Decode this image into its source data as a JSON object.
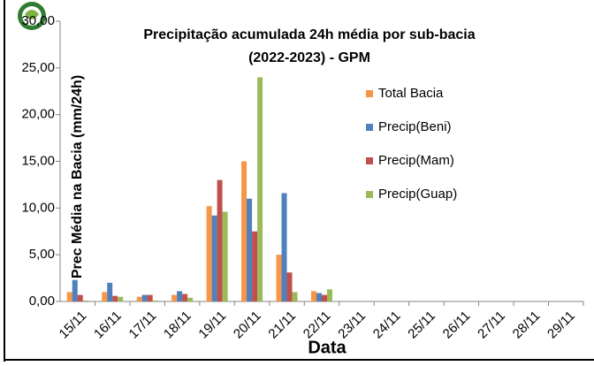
{
  "chart_data": {
    "type": "bar",
    "title": [
      "Precipitação acumulada 24h média por sub-bacia",
      "(2022-2023) - GPM"
    ],
    "ylabel": "Prec  Média na Bacia (mm/24h)",
    "xlabel": "Data",
    "categories": [
      "15/11",
      "16/11",
      "17/11",
      "18/11",
      "19/11",
      "20/11",
      "21/11",
      "22/11",
      "23/11",
      "24/11",
      "25/11",
      "26/11",
      "27/11",
      "28/11",
      "29/11"
    ],
    "series": [
      {
        "name": "Total Bacia",
        "color": "#f79646",
        "values": [
          1.0,
          1.0,
          0.5,
          0.7,
          10.2,
          15.0,
          5.0,
          1.1,
          null,
          null,
          null,
          null,
          null,
          null,
          null
        ]
      },
      {
        "name": "Precip(Beni)",
        "color": "#4f81bd",
        "values": [
          2.3,
          2.0,
          0.7,
          1.1,
          9.2,
          11.0,
          11.6,
          0.9,
          null,
          null,
          null,
          null,
          null,
          null,
          null
        ]
      },
      {
        "name": "Precip(Mam)",
        "color": "#c0504d",
        "values": [
          0.7,
          0.6,
          0.7,
          0.8,
          13.0,
          7.5,
          3.1,
          0.7,
          null,
          null,
          null,
          null,
          null,
          null,
          null
        ]
      },
      {
        "name": "Precip(Guap)",
        "color": "#9bbb59",
        "values": [
          0.1,
          0.5,
          0.1,
          0.4,
          9.6,
          24.0,
          1.0,
          1.3,
          null,
          null,
          null,
          null,
          null,
          null,
          null
        ]
      }
    ],
    "ylim": [
      0,
      30
    ],
    "yticks": [
      {
        "value": 0,
        "label": "0,00"
      },
      {
        "value": 5,
        "label": "5,00"
      },
      {
        "value": 10,
        "label": "10,00"
      },
      {
        "value": 15,
        "label": "15,00"
      },
      {
        "value": 20,
        "label": "20,00"
      },
      {
        "value": 25,
        "label": "25,00"
      },
      {
        "value": 30,
        "label": "30,00"
      }
    ],
    "legend": "right"
  }
}
